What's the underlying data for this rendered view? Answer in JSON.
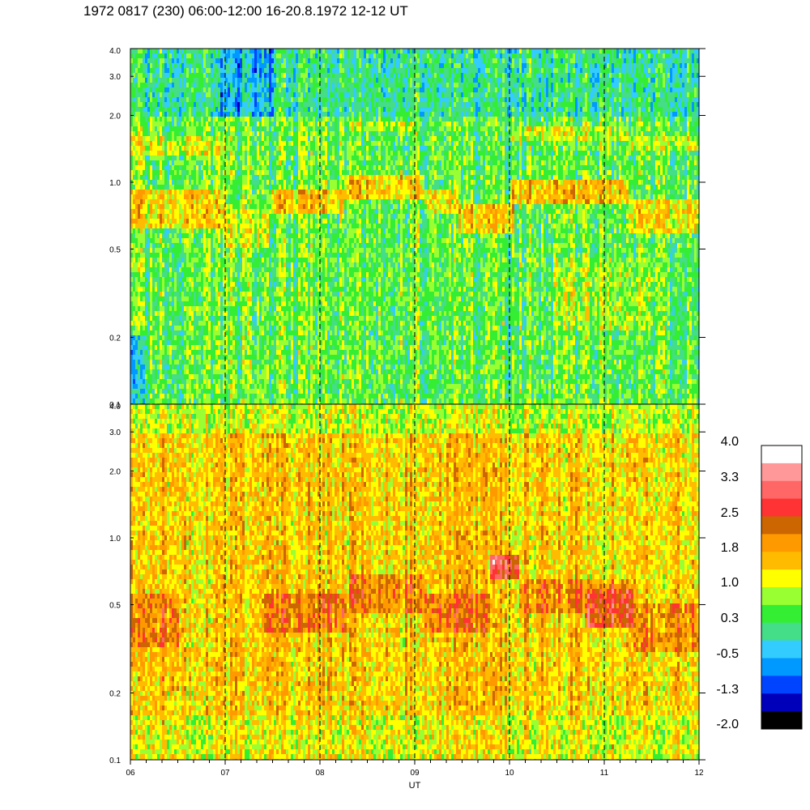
{
  "header": {
    "title": "1972 0817 (230) 06:00-12:00 16-20.8.1972  12-12 UT"
  },
  "chart_data": {
    "type": "heatmap",
    "title": "1972 0817 (230) 06:00-12:00 16-20.8.1972  12-12 UT",
    "xlabel": "UT",
    "ylabel": "",
    "x_scale": "linear",
    "y_scale": "log",
    "xlim": [
      6,
      12
    ],
    "x_ticks": [
      {
        "value": 6,
        "label": "06"
      },
      {
        "value": 7,
        "label": "07"
      },
      {
        "value": 8,
        "label": "08"
      },
      {
        "value": 9,
        "label": "09"
      },
      {
        "value": 10,
        "label": "10"
      },
      {
        "value": 11,
        "label": "11"
      },
      {
        "value": 12,
        "label": "12"
      }
    ],
    "vertical_dashed_lines_at": [
      7,
      8,
      9,
      10,
      11
    ],
    "panels": [
      {
        "name": "upper",
        "ylim": [
          0.1,
          4.0
        ],
        "y_tick_labels": [
          "4.0",
          "3.0",
          "2.0",
          "1.0",
          "0.5",
          "0.2",
          "0.1"
        ],
        "y_tick_values": [
          4.0,
          3.0,
          2.0,
          1.0,
          0.5,
          0.2,
          0.1
        ],
        "background_level": 0.5,
        "features": [
          {
            "x_range": [
              6.0,
              7.0
            ],
            "y_range": [
              0.62,
              0.92
            ],
            "level": 1.4
          },
          {
            "x_range": [
              6.0,
              7.0
            ],
            "y_range": [
              1.3,
              1.6
            ],
            "level": 1.0
          },
          {
            "x_range": [
              7.0,
              7.45
            ],
            "y_range": [
              0.5,
              0.75
            ],
            "level": 1.0
          },
          {
            "x_range": [
              7.45,
              8.25
            ],
            "y_range": [
              0.72,
              0.95
            ],
            "level": 1.5
          },
          {
            "x_range": [
              8.25,
              9.1
            ],
            "y_range": [
              0.82,
              1.08
            ],
            "level": 1.5
          },
          {
            "x_range": [
              8.3,
              9.0
            ],
            "y_range": [
              1.7,
              1.9
            ],
            "level": 1.0
          },
          {
            "x_range": [
              9.1,
              9.45
            ],
            "y_range": [
              0.72,
              0.92
            ],
            "level": 1.3
          },
          {
            "x_range": [
              9.45,
              10.05
            ],
            "y_range": [
              0.58,
              0.8
            ],
            "level": 1.5
          },
          {
            "x_range": [
              10.0,
              11.25
            ],
            "y_range": [
              0.78,
              1.0
            ],
            "level": 1.6
          },
          {
            "x_range": [
              10.0,
              11.25
            ],
            "y_range": [
              1.55,
              1.8
            ],
            "level": 1.0
          },
          {
            "x_range": [
              11.25,
              12.0
            ],
            "y_range": [
              0.6,
              0.85
            ],
            "level": 1.4
          },
          {
            "x_range": [
              11.25,
              12.0
            ],
            "y_range": [
              1.4,
              1.6
            ],
            "level": 1.0
          },
          {
            "x_range": [
              6.0,
              12.0
            ],
            "y_range": [
              2.0,
              4.0
            ],
            "level": 0.1
          },
          {
            "x_range": [
              6.9,
              7.5
            ],
            "y_range": [
              2.0,
              4.0
            ],
            "level": -0.5
          },
          {
            "x_range": [
              6.0,
              6.15
            ],
            "y_range": [
              0.1,
              0.2
            ],
            "level": -0.6
          },
          {
            "x_range": [
              10.5,
              11.5
            ],
            "y_range": [
              0.22,
              0.45
            ],
            "level": 0.8
          }
        ]
      },
      {
        "name": "lower",
        "ylim": [
          0.1,
          4.0
        ],
        "y_tick_labels": [
          "4.0",
          "3.0",
          "2.0",
          "1.0",
          "0.5",
          "0.2",
          "0.1"
        ],
        "y_tick_values": [
          4.0,
          3.0,
          2.0,
          1.0,
          0.5,
          0.2,
          0.1
        ],
        "background_level": 1.5,
        "features": [
          {
            "x_range": [
              6.0,
              6.5
            ],
            "y_range": [
              0.32,
              0.55
            ],
            "level": 2.1
          },
          {
            "x_range": [
              6.0,
              7.0
            ],
            "y_range": [
              0.2,
              0.32
            ],
            "level": 1.6
          },
          {
            "x_range": [
              7.4,
              8.3
            ],
            "y_range": [
              0.38,
              0.55
            ],
            "level": 2.1
          },
          {
            "x_range": [
              8.3,
              9.1
            ],
            "y_range": [
              0.45,
              0.68
            ],
            "level": 2.1
          },
          {
            "x_range": [
              9.1,
              9.8
            ],
            "y_range": [
              0.38,
              0.55
            ],
            "level": 2.1
          },
          {
            "x_range": [
              9.8,
              10.1
            ],
            "y_range": [
              0.65,
              0.85
            ],
            "level": 2.8
          },
          {
            "x_range": [
              10.1,
              11.25
            ],
            "y_range": [
              0.45,
              0.65
            ],
            "level": 2.1
          },
          {
            "x_range": [
              10.8,
              11.3
            ],
            "y_range": [
              0.4,
              0.6
            ],
            "level": 2.7
          },
          {
            "x_range": [
              11.3,
              12.0
            ],
            "y_range": [
              0.3,
              0.5
            ],
            "level": 2.1
          },
          {
            "x_range": [
              6.0,
              12.0
            ],
            "y_range": [
              0.1,
              0.16
            ],
            "level": 1.2
          },
          {
            "x_range": [
              6.0,
              12.0
            ],
            "y_range": [
              3.0,
              4.0
            ],
            "level": 1.0
          }
        ]
      }
    ],
    "colorbar": {
      "labels": [
        "4.0",
        "3.3",
        "2.5",
        "1.8",
        "1.0",
        "0.3",
        "-0.5",
        "-1.3",
        "-2.0"
      ],
      "label_values": [
        4.0,
        3.3,
        2.5,
        1.8,
        1.0,
        0.3,
        -0.5,
        -1.3,
        -2.0
      ],
      "range": [
        -2.0,
        4.0
      ],
      "colors_top_to_bottom": [
        "#ffffff",
        "#ff9999",
        "#ff6666",
        "#ff3333",
        "#cc6600",
        "#ff9900",
        "#ffbb00",
        "#ffff00",
        "#99ff33",
        "#33ee33",
        "#44dd88",
        "#33ccff",
        "#0099ff",
        "#0044ff",
        "#0000bb",
        "#000000"
      ]
    }
  }
}
